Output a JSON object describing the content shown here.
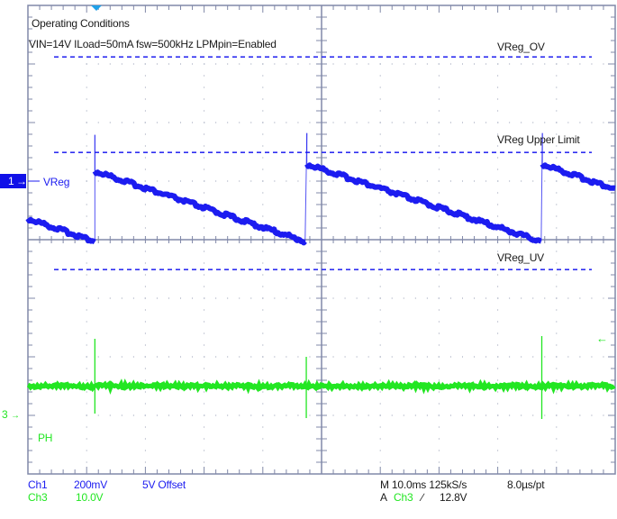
{
  "scope": {
    "annotations": {
      "title": "Operating Conditions",
      "conditions": "VIN=14V ILoad=50mA fsw=500kHz LPMpin=Enabled",
      "ov_label": "VReg_OV",
      "upper_limit_label": "VReg Upper Limit",
      "uv_label": "VReg_UV"
    },
    "channels": {
      "ch1": {
        "marker": "1",
        "arrow": "→",
        "trace_label": "VReg",
        "color": "#1c1cf0"
      },
      "ch3": {
        "marker": "3",
        "arrow": "→",
        "trace_label": "PH",
        "color": "#22e622"
      }
    },
    "trigger_level_arrow": "←",
    "status": {
      "ch1_name": "Ch1",
      "ch1_scale": "200mV",
      "ch1_offset": "5V Offset",
      "ch3_name": "Ch3",
      "ch3_scale": "10.0V",
      "timebase": "M 10.0ms 125kS/s",
      "resolution": "8.0µs/pt",
      "trigger_prefix": "A",
      "trigger_source": "Ch3",
      "trigger_slope": "∕",
      "trigger_level": "12.8V"
    },
    "colors": {
      "graticule": "#8088a8",
      "dots": "#9098b0",
      "ch1": "#1c1cf0",
      "ch1_dashed": "#3030f0",
      "ch3": "#22e622"
    }
  },
  "chart_data": {
    "type": "line",
    "title": "Operating Conditions",
    "subtitle": "VIN=14V ILoad=50mA fsw=500kHz LPMpin=Enabled",
    "xlabel": "Time (10.0 ms/div)",
    "ylabel": "",
    "grid": true,
    "divisions": {
      "x": 10,
      "y": 8
    },
    "series": [
      {
        "name": "VReg (Ch1, 200mV/div, 5V offset)",
        "description": "Sawtooth: ramps down linearly, refreshes to upper level with short spike at each PH pulse",
        "x_div": [
          0.0,
          1.14,
          1.14,
          1.14,
          4.72,
          4.75,
          4.75,
          4.75,
          8.74,
          8.76,
          8.76,
          8.76,
          10.0
        ],
        "y_div": [
          0.36,
          -0.03,
          1.79,
          1.17,
          -0.03,
          1.82,
          1.82,
          1.29,
          -0.03,
          1.82,
          1.82,
          1.29,
          0.86
        ]
      },
      {
        "name": "PH (Ch3, 10.0V/div)",
        "description": "Flat near ground with brief switching pulses coinciding with VReg refresh",
        "pulse_x_div": [
          1.14,
          4.74,
          8.75
        ],
        "baseline_y_div": -2.5
      }
    ],
    "reference_lines": [
      {
        "name": "VReg_OV",
        "y_div": 3.12
      },
      {
        "name": "VReg Upper Limit",
        "y_div": 1.49
      },
      {
        "name": "VReg_UV",
        "y_div": -0.51
      }
    ],
    "legend_position": "bottom"
  }
}
